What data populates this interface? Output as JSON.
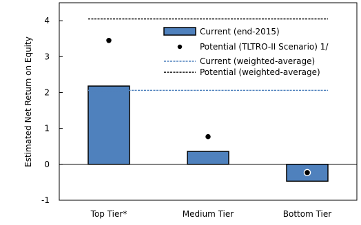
{
  "chart_data": {
    "type": "bar",
    "categories": [
      "Top Tier*",
      "Medium Tier",
      "Bottom Tier"
    ],
    "series": [
      {
        "name": "Current (end-2015)",
        "kind": "bar",
        "values": [
          2.18,
          0.36,
          -0.47
        ],
        "color": "#4f81bd"
      },
      {
        "name": "Potential (TLTRO-II Scenario) 1/",
        "kind": "marker",
        "values": [
          3.45,
          0.77,
          -0.23
        ],
        "color": "#000000"
      }
    ],
    "reference_lines": [
      {
        "name": "Current (weighted-average)",
        "value": 2.06,
        "color": "#4f81bd",
        "style": "dashed"
      },
      {
        "name": "Potential (weighted-average)",
        "value": 4.05,
        "color": "#000000",
        "style": "dashed"
      }
    ],
    "title": "",
    "xlabel": "",
    "ylabel": "Estimated Net Return on Equity",
    "ylim": [
      -1,
      4.5
    ],
    "yticks": [
      -1,
      0,
      1,
      2,
      3,
      4
    ],
    "grid": false,
    "legend_position": "top-right-inside"
  }
}
